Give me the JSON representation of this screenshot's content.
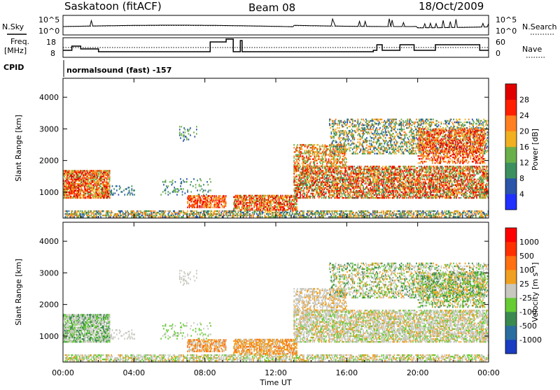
{
  "header": {
    "station": "Saskatoon (fitACF)",
    "beam": "Beam 08",
    "date": "18/Oct/2009"
  },
  "noise_panel": {
    "left_label": "N.Sky",
    "right_label": "N.Search",
    "left_ticks": [
      "10^5",
      "10^0"
    ],
    "right_ticks": [
      "10^5",
      "10^0"
    ]
  },
  "freq_panel": {
    "left_label_top": "Freq.",
    "left_label_bottom": "[MHz]",
    "right_label": "Nave",
    "left_ticks": [
      "18",
      "8"
    ],
    "right_ticks": [
      "60",
      "0"
    ]
  },
  "cpid": {
    "label": "CPID",
    "text": "normalsound (fast) -157"
  },
  "chart_data": [
    {
      "type": "heatmap",
      "quantity": "Power",
      "ylabel": "Slant Range [km]",
      "xlabel": "",
      "xlim": [
        "00:00",
        "24:00"
      ],
      "ylim": [
        180,
        4600
      ],
      "yticks": [
        1000,
        2000,
        3000,
        4000
      ],
      "colorbar": {
        "label": "Power [dB]",
        "ticks": [
          4,
          8,
          12,
          16,
          20,
          24,
          28
        ],
        "colors": [
          "#2030ff",
          "#2a55a8",
          "#3c9060",
          "#6ab04a",
          "#f0b020",
          "#ff8020",
          "#ff2000",
          "#e00000"
        ]
      }
    },
    {
      "type": "heatmap",
      "quantity": "Velocity",
      "ylabel": "Slant Range [km]",
      "xlabel": "Time UT",
      "xlim": [
        "00:00",
        "24:00"
      ],
      "ylim": [
        180,
        4600
      ],
      "yticks": [
        1000,
        2000,
        3000,
        4000
      ],
      "xticks": [
        "00:00",
        "04:00",
        "08:00",
        "12:00",
        "16:00",
        "20:00",
        "00:00"
      ],
      "colorbar": {
        "label": "Velocity [m s⁻¹]",
        "ticks": [
          "1000",
          "500",
          "100",
          "25",
          "-25",
          "-100",
          "-500",
          "-1000"
        ],
        "colors": [
          "#1a3cc0",
          "#2a6ea0",
          "#3a8a50",
          "#66cc33",
          "#c8c8c0",
          "#f0a020",
          "#ff7010",
          "#ff3000",
          "#ff0000"
        ]
      }
    }
  ]
}
